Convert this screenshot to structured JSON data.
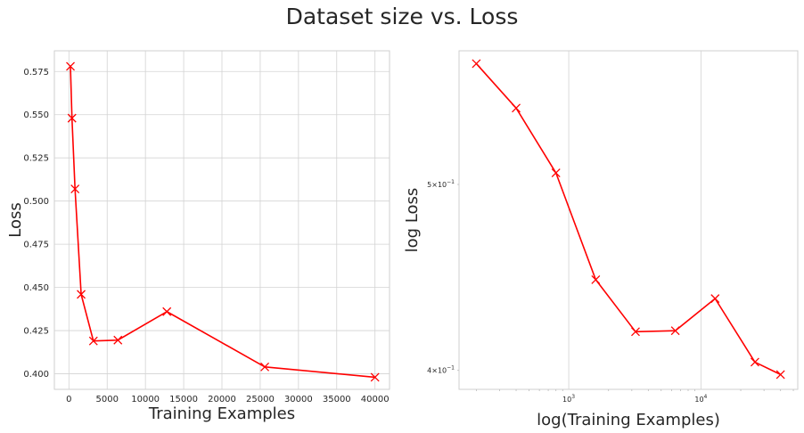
{
  "suptitle": "Dataset size vs. Loss",
  "colors": {
    "line": "#ff0000",
    "grid": "#d3d3d3",
    "text": "#262626"
  },
  "chart_data": [
    {
      "type": "line",
      "xlabel": "Training Examples",
      "ylabel": "Loss",
      "xscale": "linear",
      "yscale": "linear",
      "xlim": [
        -1900,
        41900
      ],
      "ylim": [
        0.391,
        0.587
      ],
      "xticks": [
        0,
        5000,
        10000,
        15000,
        20000,
        25000,
        30000,
        35000,
        40000
      ],
      "xtick_labels": [
        "0",
        "5000",
        "10000",
        "15000",
        "20000",
        "25000",
        "30000",
        "35000",
        "40000"
      ],
      "yticks": [
        0.4,
        0.425,
        0.45,
        0.475,
        0.5,
        0.525,
        0.55,
        0.575
      ],
      "ytick_labels": [
        "0.400",
        "0.425",
        "0.450",
        "0.475",
        "0.500",
        "0.525",
        "0.550",
        "0.575"
      ],
      "grid": true,
      "marker": "x",
      "x": [
        200,
        400,
        800,
        1600,
        3200,
        6400,
        12800,
        25600,
        40000
      ],
      "y": [
        0.578,
        0.548,
        0.507,
        0.446,
        0.419,
        0.4195,
        0.436,
        0.404,
        0.398
      ]
    },
    {
      "type": "line",
      "xlabel": "log(Training Examples)",
      "ylabel": "log Loss",
      "xscale": "log",
      "yscale": "log",
      "xlim": [
        148,
        54000
      ],
      "ylim": [
        0.391,
        0.587
      ],
      "major_xticks": [
        1000,
        10000
      ],
      "major_xtick_labels": [
        "10^3",
        "10^4"
      ],
      "major_yticks": [
        0.4,
        0.5
      ],
      "major_ytick_labels": [
        "4×10^-1",
        "5×10^-1"
      ],
      "grid": true,
      "marker": "x",
      "x": [
        200,
        400,
        800,
        1600,
        3200,
        6400,
        12800,
        25600,
        40000
      ],
      "y": [
        0.578,
        0.548,
        0.507,
        0.446,
        0.419,
        0.4195,
        0.436,
        0.404,
        0.398
      ]
    }
  ]
}
